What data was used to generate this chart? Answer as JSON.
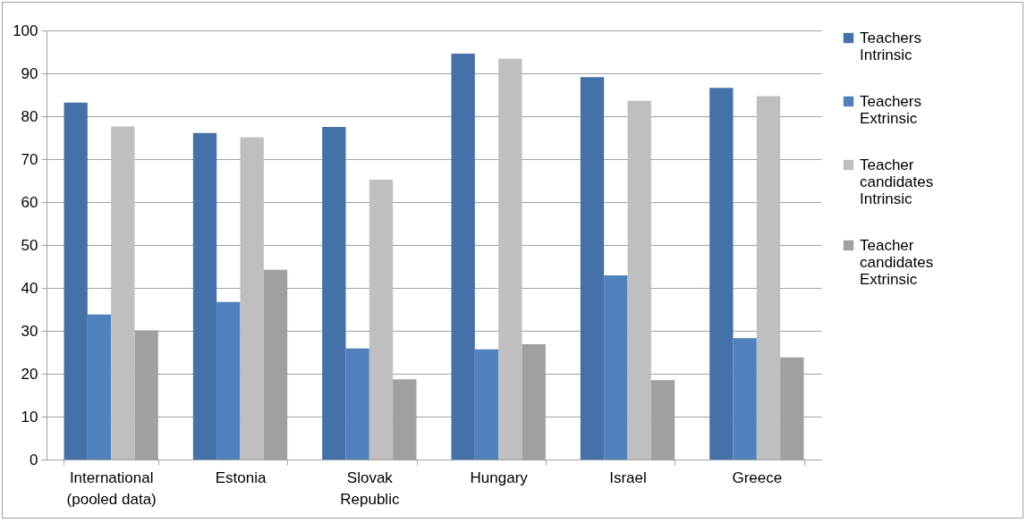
{
  "chart_data": {
    "type": "bar",
    "categories": [
      "International (pooled data)",
      "Estonia",
      "Slovak Republic",
      "Hungary",
      "Israel",
      "Greece"
    ],
    "series": [
      {
        "name": "Teachers Intrinsic",
        "color": "#4472a8",
        "values": [
          83.2,
          76.1,
          77.5,
          94.6,
          89.1,
          86.6
        ]
      },
      {
        "name": "Teachers Extrinsic",
        "color": "#4f81bd",
        "values": [
          33.8,
          36.7,
          25.9,
          25.7,
          42.9,
          28.3
        ]
      },
      {
        "name": "Teacher candidates Intrinsic",
        "color": "#bfbfbf",
        "values": [
          77.6,
          75.1,
          65.2,
          93.4,
          83.6,
          84.7
        ]
      },
      {
        "name": "Teacher candidates Extrinsic",
        "color": "#a0a0a0",
        "values": [
          30.1,
          44.2,
          18.7,
          26.9,
          18.5,
          23.8
        ]
      }
    ],
    "ylim": [
      0,
      100
    ],
    "yticks": [
      0,
      10,
      20,
      30,
      40,
      50,
      60,
      70,
      80,
      90,
      100
    ],
    "grid": "y",
    "legend": "right"
  }
}
